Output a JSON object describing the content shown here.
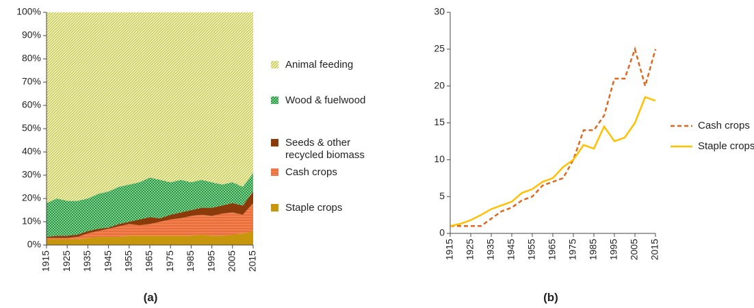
{
  "chart_data": [
    {
      "type": "area",
      "caption": "(a)",
      "stacked": true,
      "x": [
        1915,
        1920,
        1925,
        1930,
        1935,
        1940,
        1945,
        1950,
        1955,
        1960,
        1965,
        1970,
        1975,
        1980,
        1985,
        1990,
        1995,
        2000,
        2005,
        2010,
        2015
      ],
      "xlim": [
        1915,
        2015
      ],
      "xticks": [
        1915,
        1925,
        1935,
        1945,
        1955,
        1965,
        1975,
        1985,
        1995,
        2005,
        2015
      ],
      "ylim": [
        0,
        100
      ],
      "yticks": [
        {
          "value": 0,
          "label": "0%"
        },
        {
          "value": 10,
          "label": "10%"
        },
        {
          "value": 20,
          "label": "20%"
        },
        {
          "value": 30,
          "label": "30%"
        },
        {
          "value": 40,
          "label": "40%"
        },
        {
          "value": 50,
          "label": "50%"
        },
        {
          "value": 60,
          "label": "60%"
        },
        {
          "value": 70,
          "label": "70%"
        },
        {
          "value": 80,
          "label": "80%"
        },
        {
          "value": 90,
          "label": "90%"
        },
        {
          "value": 100,
          "label": "100%"
        }
      ],
      "series": [
        {
          "name": "Staple crops",
          "color": "#c8960c",
          "pattern": "solid",
          "values": [
            2.5,
            2.5,
            2.5,
            2.5,
            3,
            3.5,
            3.5,
            3.5,
            4,
            4,
            4,
            4,
            4,
            4,
            4,
            4.5,
            4,
            4,
            4.5,
            5,
            6
          ]
        },
        {
          "name": "Cash crops",
          "color": "#e8581c",
          "pattern": "dots",
          "values": [
            0.5,
            0.5,
            0.5,
            1,
            2,
            2.5,
            3.5,
            4.5,
            5,
            4.5,
            5,
            6,
            7,
            7.5,
            8.5,
            8.5,
            8.5,
            9.5,
            9.5,
            8,
            12
          ]
        },
        {
          "name": "Seeds & other recycled biomass",
          "color": "#8b3a0a",
          "pattern": "solid",
          "values": [
            0.5,
            1,
            1,
            1,
            1,
            1,
            0.5,
            1,
            1,
            2.5,
            3,
            1.5,
            2,
            2.5,
            2.5,
            3,
            3.5,
            3.5,
            4,
            4,
            5
          ]
        },
        {
          "name": "Wood & fuelwood",
          "color": "#1f9a3a",
          "pattern": "cross",
          "values": [
            14.5,
            16,
            15,
            14.5,
            14,
            15,
            15.5,
            16,
            16,
            16,
            17,
            16.5,
            14,
            14,
            12,
            12,
            11,
            9,
            9,
            8,
            8
          ]
        },
        {
          "name": "Animal feeding",
          "color": "#c8cc3a",
          "pattern": "hatch",
          "values": [
            82,
            80,
            81,
            81,
            80,
            78,
            77,
            75,
            74,
            73,
            71,
            72,
            73,
            72,
            73,
            72,
            73,
            74,
            73,
            75,
            69
          ]
        }
      ]
    },
    {
      "type": "line",
      "caption": "(b)",
      "x": [
        1915,
        1920,
        1925,
        1930,
        1935,
        1940,
        1945,
        1950,
        1955,
        1960,
        1965,
        1970,
        1975,
        1980,
        1985,
        1990,
        1995,
        2000,
        2005,
        2010,
        2015
      ],
      "xlim": [
        1915,
        2015
      ],
      "xticks": [
        1915,
        1925,
        1935,
        1945,
        1955,
        1965,
        1975,
        1985,
        1995,
        2005,
        2015
      ],
      "ylim": [
        0,
        30
      ],
      "yticks": [
        0,
        5,
        10,
        15,
        20,
        25,
        30
      ],
      "series": [
        {
          "name": "Cash crops",
          "color": "#e0661c",
          "dash": "dashed",
          "values": [
            1,
            1,
            1,
            1,
            2,
            3,
            3.5,
            4.5,
            5,
            6.5,
            7,
            7.5,
            10,
            14,
            14,
            16,
            21,
            21,
            25,
            20,
            25
          ]
        },
        {
          "name": "Staple crops",
          "color": "#ffc000",
          "dash": "solid",
          "values": [
            1,
            1.3,
            1.8,
            2.5,
            3.3,
            3.8,
            4.3,
            5.5,
            6,
            7,
            7.5,
            9,
            10,
            12,
            11.5,
            14.5,
            12.5,
            13,
            15,
            18.5,
            18
          ]
        }
      ]
    }
  ]
}
